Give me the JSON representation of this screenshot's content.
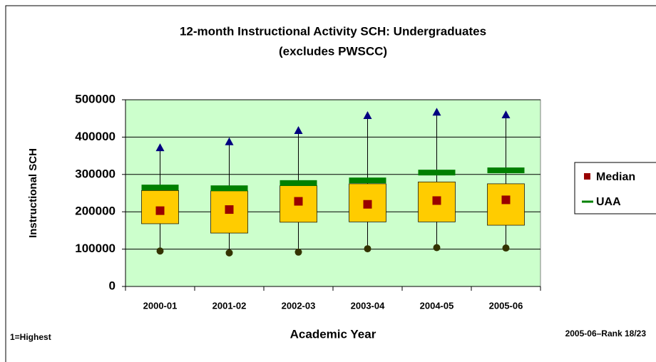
{
  "chart_data": {
    "type": "box",
    "title": "12-month Instructional Activity SCH: Undergraduates",
    "subtitle": "(excludes PWSCC)",
    "x_label": "Academic Year",
    "y_label": "Instructional SCH",
    "annotations": [
      "1=Highest",
      "2005-06–Rank 18/23"
    ],
    "categories": [
      "2000-01",
      "2001-02",
      "2002-03",
      "2003-04",
      "2004-05",
      "2005-06"
    ],
    "max": {
      "color": "#000080",
      "values": [
        372000,
        388000,
        418000,
        458000,
        467000,
        460000
      ]
    },
    "q3": {
      "color": "#ffcc00",
      "values": [
        257000,
        256000,
        270000,
        275000,
        280000,
        275000
      ]
    },
    "q1": {
      "color": "#ffcc00",
      "values": [
        168000,
        143000,
        172000,
        173000,
        173000,
        164000
      ]
    },
    "min": {
      "color": "#333300",
      "values": [
        95000,
        90000,
        92000,
        101000,
        104000,
        103000
      ]
    },
    "series": [
      {
        "name": "Median",
        "color": "#990000",
        "values": [
          203000,
          206000,
          228000,
          220000,
          230000,
          232000
        ]
      },
      {
        "name": "UAA",
        "color": "#008000",
        "values": [
          265000,
          263000,
          277000,
          284000,
          305000,
          311000
        ]
      }
    ],
    "ylim": [
      0,
      500000
    ],
    "yticks": [
      0,
      100000,
      200000,
      300000,
      400000,
      500000
    ],
    "grid": true,
    "legend": "right",
    "plot_background": "#ccffcc"
  }
}
